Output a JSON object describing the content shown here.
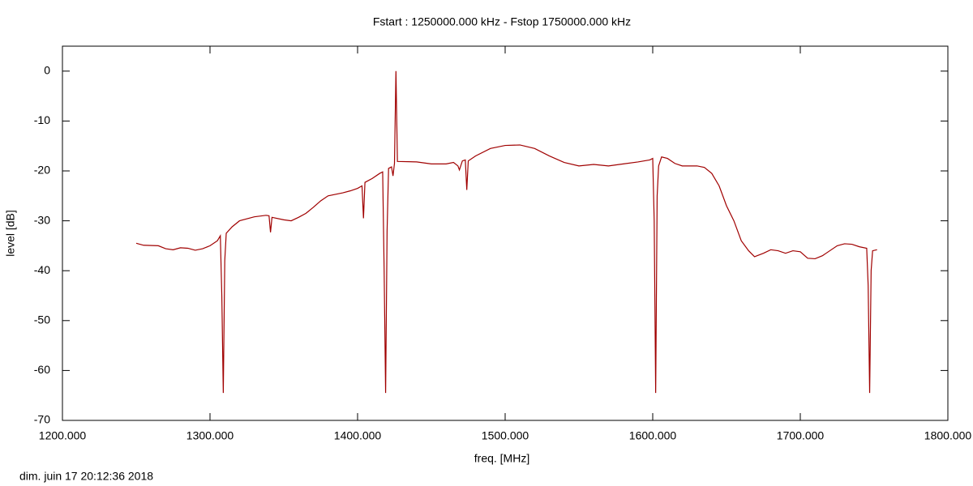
{
  "chart_data": {
    "type": "line",
    "title": "Fstart : 1250000.000 kHz  -  Fstop 1750000.000 kHz",
    "x_label": "freq. [MHz]",
    "y_label": "level [dB]",
    "footnote": "dim. juin 17 20:12:36 2018",
    "color": "#a00000",
    "xlim": [
      1200,
      1800
    ],
    "ylim": [
      -70,
      5
    ],
    "xticks": [
      {
        "value": 1200,
        "label": "1200.000"
      },
      {
        "value": 1300,
        "label": "1300.000"
      },
      {
        "value": 1400,
        "label": "1400.000"
      },
      {
        "value": 1500,
        "label": "1500.000"
      },
      {
        "value": 1600,
        "label": "1600.000"
      },
      {
        "value": 1700,
        "label": "1700.000"
      },
      {
        "value": 1800,
        "label": "1800.000"
      }
    ],
    "yticks": [
      0,
      -10,
      -20,
      -30,
      -40,
      -50,
      -60,
      -70
    ],
    "x": [
      1250,
      1255,
      1265,
      1270,
      1275,
      1280,
      1285,
      1290,
      1295,
      1300,
      1305,
      1307,
      1308,
      1309,
      1310,
      1311,
      1315,
      1320,
      1330,
      1338,
      1340,
      1341,
      1342,
      1350,
      1355,
      1360,
      1365,
      1370,
      1375,
      1380,
      1390,
      1395,
      1400,
      1403,
      1404,
      1405,
      1410,
      1415,
      1417,
      1418,
      1419,
      1420,
      1421,
      1423,
      1424,
      1425,
      1426,
      1427,
      1440,
      1450,
      1460,
      1465,
      1468,
      1469,
      1471,
      1473,
      1474,
      1475,
      1480,
      1490,
      1500,
      1510,
      1520,
      1530,
      1540,
      1550,
      1560,
      1570,
      1580,
      1590,
      1598,
      1600,
      1601,
      1602,
      1603,
      1604,
      1606,
      1610,
      1615,
      1620,
      1630,
      1635,
      1640,
      1645,
      1650,
      1655,
      1660,
      1665,
      1669,
      1675,
      1680,
      1685,
      1690,
      1695,
      1700,
      1705,
      1710,
      1715,
      1720,
      1725,
      1730,
      1735,
      1740,
      1745,
      1746,
      1747,
      1748,
      1749,
      1752
    ],
    "values": [
      -34.5,
      -34.9,
      -35.0,
      -35.6,
      -35.8,
      -35.4,
      -35.5,
      -35.9,
      -35.6,
      -35.0,
      -34.0,
      -33.0,
      -45,
      -64.5,
      -38,
      -32.5,
      -31.2,
      -30.0,
      -29.2,
      -28.9,
      -29.0,
      -32.3,
      -29.3,
      -29.8,
      -30.0,
      -29.3,
      -28.5,
      -27.3,
      -26.0,
      -25.0,
      -24.4,
      -24.0,
      -23.5,
      -23.0,
      -29.5,
      -22.3,
      -21.5,
      -20.5,
      -20.2,
      -40,
      -64.5,
      -32,
      -19.5,
      -19.2,
      -21.0,
      -18.5,
      0,
      -18.1,
      -18.2,
      -18.6,
      -18.6,
      -18.3,
      -19.0,
      -19.8,
      -18.0,
      -17.8,
      -23.8,
      -18.0,
      -17.0,
      -15.5,
      -14.9,
      -14.8,
      -15.5,
      -17.0,
      -18.3,
      -19.0,
      -18.7,
      -19.0,
      -18.6,
      -18.2,
      -17.8,
      -17.5,
      -30,
      -64.5,
      -25,
      -19.0,
      -17.2,
      -17.5,
      -18.5,
      -19.0,
      -19.0,
      -19.3,
      -20.5,
      -23.0,
      -27.0,
      -30.0,
      -34.0,
      -36.0,
      -37.2,
      -36.5,
      -35.8,
      -36.0,
      -36.5,
      -36.0,
      -36.2,
      -37.5,
      -37.6,
      -37.0,
      -36.0,
      -35.0,
      -34.6,
      -34.7,
      -35.2,
      -35.5,
      -43,
      -64.5,
      -40,
      -36.0,
      -35.8
    ]
  }
}
